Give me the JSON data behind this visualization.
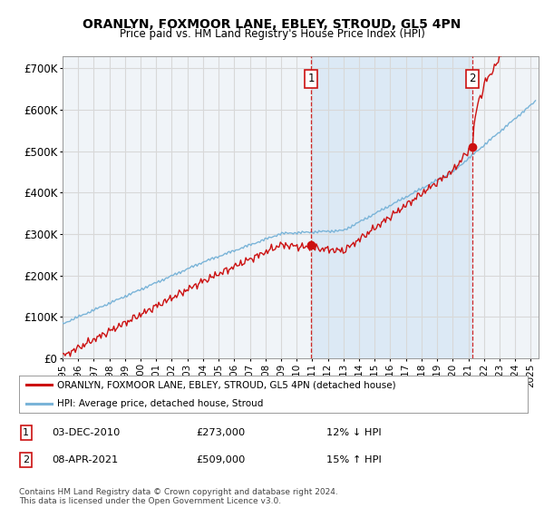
{
  "title": "ORANLYN, FOXMOOR LANE, EBLEY, STROUD, GL5 4PN",
  "subtitle": "Price paid vs. HM Land Registry's House Price Index (HPI)",
  "ylim": [
    0,
    730000
  ],
  "yticks": [
    0,
    100000,
    200000,
    300000,
    400000,
    500000,
    600000,
    700000
  ],
  "ytick_labels": [
    "£0",
    "£100K",
    "£200K",
    "£300K",
    "£400K",
    "£500K",
    "£600K",
    "£700K"
  ],
  "fig_bg_color": "#ffffff",
  "plot_bg_color": "#f0f4f8",
  "shaded_bg_color": "#dce9f5",
  "grid_color": "#d8d8d8",
  "hpi_color": "#7ab4d8",
  "price_color": "#cc1111",
  "marker1_x": 2010.92,
  "marker1_y": 273000,
  "marker2_x": 2021.27,
  "marker2_y": 509000,
  "legend_label1": "ORANLYN, FOXMOOR LANE, EBLEY, STROUD, GL5 4PN (detached house)",
  "legend_label2": "HPI: Average price, detached house, Stroud",
  "table_row1": [
    "1",
    "03-DEC-2010",
    "£273,000",
    "12% ↓ HPI"
  ],
  "table_row2": [
    "2",
    "08-APR-2021",
    "£509,000",
    "15% ↑ HPI"
  ],
  "footer": "Contains HM Land Registry data © Crown copyright and database right 2024.\nThis data is licensed under the Open Government Licence v3.0.",
  "xmin": 1995,
  "xmax": 2025.5
}
